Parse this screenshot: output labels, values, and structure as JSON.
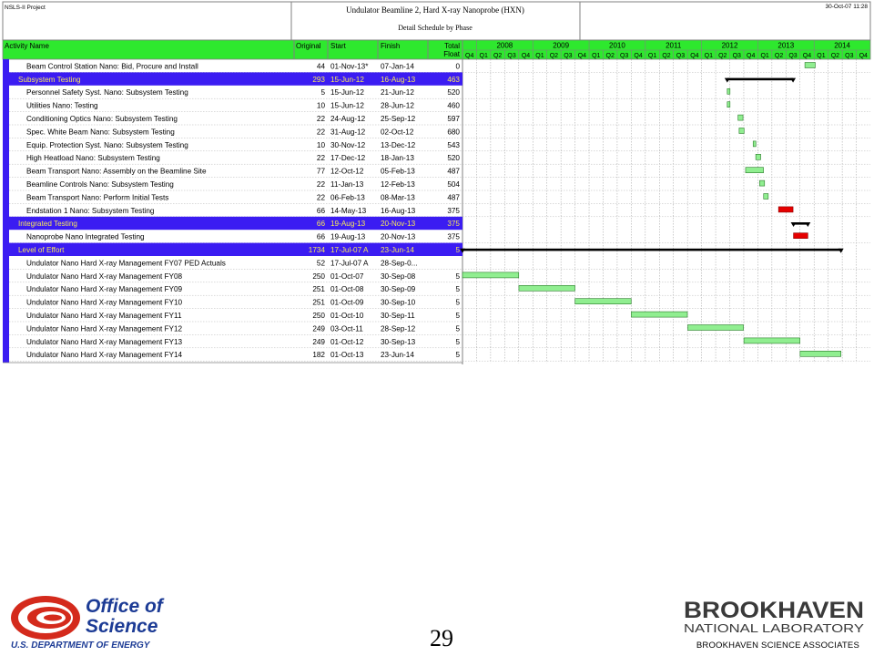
{
  "header": {
    "project": "NSLS-II Project",
    "title": "Undulator Beamline 2, Hard X-ray Nanoprobe (HXN)",
    "subtitle": "Detail Schedule by Phase",
    "date": "30-Oct-07 11:28"
  },
  "columns": {
    "activity": "Activity Name",
    "original": "Original",
    "start": "Start",
    "finish": "Finish",
    "float_top": "Total",
    "float_bottom": "Float"
  },
  "colors": {
    "header_green": "#2ee82e",
    "group_blue": "#3b1cf2",
    "group_text": "#f7e75a",
    "bar_green": "#90ee90",
    "bar_red": "#e60000",
    "summary": "#000000"
  },
  "chart_data": {
    "type": "gantt",
    "years": [
      "2008",
      "2009",
      "2010",
      "2011",
      "2012",
      "2013",
      "2014"
    ],
    "quarters": [
      "Q4",
      "Q1",
      "Q2",
      "Q3",
      "Q4",
      "Q1",
      "Q2",
      "Q3",
      "Q4",
      "Q1",
      "Q2",
      "Q3",
      "Q4",
      "Q1",
      "Q2",
      "Q3",
      "Q4",
      "Q1",
      "Q2",
      "Q3",
      "Q4",
      "Q1",
      "Q2",
      "Q3",
      "Q4",
      "Q1",
      "Q2",
      "Q3",
      "Q4"
    ],
    "axis_start": "2007-10-01",
    "axis_end": "2014-12-31",
    "rows": [
      {
        "name": "Beam Control Station Nano:  Bid, Procure and Install",
        "original": "44",
        "start": "01-Nov-13*",
        "finish": "07-Jan-14",
        "float": "0",
        "kind": "task",
        "bar_start": "2013-11-01",
        "bar_end": "2014-01-07",
        "critical": false
      },
      {
        "name": "Subsystem Testing",
        "original": "293",
        "start": "15-Jun-12",
        "finish": "16-Aug-13",
        "float": "463",
        "kind": "group",
        "bar_start": "2012-06-15",
        "bar_end": "2013-08-16"
      },
      {
        "name": "Personnel Safety Syst. Nano:  Subsystem Testing",
        "original": "5",
        "start": "15-Jun-12",
        "finish": "21-Jun-12",
        "float": "520",
        "kind": "task",
        "bar_start": "2012-06-15",
        "bar_end": "2012-06-21",
        "critical": false
      },
      {
        "name": "Utilities  Nano:  Testing",
        "original": "10",
        "start": "15-Jun-12",
        "finish": "28-Jun-12",
        "float": "460",
        "kind": "task",
        "bar_start": "2012-06-15",
        "bar_end": "2012-06-28",
        "critical": false
      },
      {
        "name": "Conditioning Optics Nano:  Subsystem Testing",
        "original": "22",
        "start": "24-Aug-12",
        "finish": "25-Sep-12",
        "float": "597",
        "kind": "task",
        "bar_start": "2012-08-24",
        "bar_end": "2012-09-25",
        "critical": false
      },
      {
        "name": "Spec. White Beam Nano:  Subsystem Testing",
        "original": "22",
        "start": "31-Aug-12",
        "finish": "02-Oct-12",
        "float": "680",
        "kind": "task",
        "bar_start": "2012-08-31",
        "bar_end": "2012-10-02",
        "critical": false
      },
      {
        "name": "Equip. Protection Syst. Nano:  Subsystem Testing",
        "original": "10",
        "start": "30-Nov-12",
        "finish": "13-Dec-12",
        "float": "543",
        "kind": "task",
        "bar_start": "2012-11-30",
        "bar_end": "2012-12-13",
        "critical": false
      },
      {
        "name": "High Heatload Nano:  Subsystem Testing",
        "original": "22",
        "start": "17-Dec-12",
        "finish": "18-Jan-13",
        "float": "520",
        "kind": "task",
        "bar_start": "2012-12-17",
        "bar_end": "2013-01-18",
        "critical": false
      },
      {
        "name": "Beam Transport  Nano:  Assembly on the Beamline Site",
        "original": "77",
        "start": "12-Oct-12",
        "finish": "05-Feb-13",
        "float": "487",
        "kind": "task",
        "bar_start": "2012-10-12",
        "bar_end": "2013-02-05",
        "critical": false
      },
      {
        "name": "Beamline Controls Nano:  Subsystem Testing",
        "original": "22",
        "start": "11-Jan-13",
        "finish": "12-Feb-13",
        "float": "504",
        "kind": "task",
        "bar_start": "2013-01-11",
        "bar_end": "2013-02-12",
        "critical": false
      },
      {
        "name": "Beam Transport  Nano:  Perform Initial Tests",
        "original": "22",
        "start": "06-Feb-13",
        "finish": "08-Mar-13",
        "float": "487",
        "kind": "task",
        "bar_start": "2013-02-06",
        "bar_end": "2013-03-08",
        "critical": false
      },
      {
        "name": "Endstation 1 Nano:  Subsystem Testing",
        "original": "66",
        "start": "14-May-13",
        "finish": "16-Aug-13",
        "float": "375",
        "kind": "task",
        "bar_start": "2013-05-14",
        "bar_end": "2013-08-16",
        "critical": true
      },
      {
        "name": "Integrated Testing",
        "original": "66",
        "start": "19-Aug-13",
        "finish": "20-Nov-13",
        "float": "375",
        "kind": "group",
        "bar_start": "2013-08-19",
        "bar_end": "2013-11-20"
      },
      {
        "name": "Nanoprobe Nano Integrated Testing",
        "original": "66",
        "start": "19-Aug-13",
        "finish": "20-Nov-13",
        "float": "375",
        "kind": "task",
        "bar_start": "2013-08-19",
        "bar_end": "2013-11-20",
        "critical": true
      },
      {
        "name": "Level of Effort",
        "original": "1734",
        "start": "17-Jul-07 A",
        "finish": "23-Jun-14",
        "float": "5",
        "kind": "group",
        "bar_start": "2007-07-17",
        "bar_end": "2014-06-23"
      },
      {
        "name": "Undulator Nano Hard X-ray  Management FY07 PED Actuals",
        "original": "52",
        "start": "17-Jul-07 A",
        "finish": "28-Sep-0...",
        "float": "",
        "kind": "task",
        "bar_start": "",
        "bar_end": "",
        "critical": false
      },
      {
        "name": "Undulator Nano Hard X-ray  Management FY08",
        "original": "250",
        "start": "01-Oct-07",
        "finish": "30-Sep-08",
        "float": "5",
        "kind": "task",
        "bar_start": "2007-10-01",
        "bar_end": "2008-09-30",
        "critical": false
      },
      {
        "name": "Undulator Nano Hard X-ray  Management FY09",
        "original": "251",
        "start": "01-Oct-08",
        "finish": "30-Sep-09",
        "float": "5",
        "kind": "task",
        "bar_start": "2008-10-01",
        "bar_end": "2009-09-30",
        "critical": false
      },
      {
        "name": "Undulator Nano Hard X-ray  Management FY10",
        "original": "251",
        "start": "01-Oct-09",
        "finish": "30-Sep-10",
        "float": "5",
        "kind": "task",
        "bar_start": "2009-10-01",
        "bar_end": "2010-09-30",
        "critical": false
      },
      {
        "name": "Undulator Nano Hard X-ray  Management FY11",
        "original": "250",
        "start": "01-Oct-10",
        "finish": "30-Sep-11",
        "float": "5",
        "kind": "task",
        "bar_start": "2010-10-01",
        "bar_end": "2011-09-30",
        "critical": false
      },
      {
        "name": "Undulator Nano Hard X-ray  Management FY12",
        "original": "249",
        "start": "03-Oct-11",
        "finish": "28-Sep-12",
        "float": "5",
        "kind": "task",
        "bar_start": "2011-10-03",
        "bar_end": "2012-09-28",
        "critical": false
      },
      {
        "name": "Undulator Nano Hard X-ray  Management FY13",
        "original": "249",
        "start": "01-Oct-12",
        "finish": "30-Sep-13",
        "float": "5",
        "kind": "task",
        "bar_start": "2012-10-01",
        "bar_end": "2013-09-30",
        "critical": false
      },
      {
        "name": "Undulator Nano Hard X-ray  Management FY14",
        "original": "182",
        "start": "01-Oct-13",
        "finish": "23-Jun-14",
        "float": "5",
        "kind": "task",
        "bar_start": "2013-10-01",
        "bar_end": "2014-06-23",
        "critical": false
      }
    ]
  },
  "footer": {
    "page_number": "29",
    "credit": "BROOKHAVEN SCIENCE ASSOCIATES",
    "doe_line1": "Office of",
    "doe_line2": "Science",
    "doe_line3": "U.S. DEPARTMENT OF ENERGY",
    "bnl_line1": "BROOKHAVEN",
    "bnl_line2": "NATIONAL LABORATORY"
  }
}
